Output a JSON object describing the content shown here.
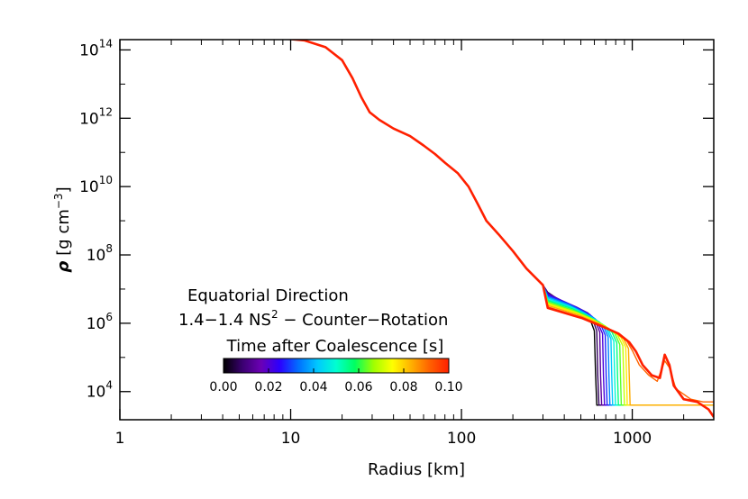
{
  "chart_data": {
    "type": "line",
    "xlabel": "Radius [km]",
    "ylabel_symbol": "ρ",
    "ylabel_units": "[g cm",
    "ylabel_exp": "−3",
    "ylabel_close": "]",
    "xscale": "log",
    "yscale": "log",
    "xlim": [
      1,
      3000
    ],
    "ylim": [
      1500,
      200000000000000.0
    ],
    "x_ticks": [
      {
        "value": 1,
        "label": "1"
      },
      {
        "value": 10,
        "label": "10"
      },
      {
        "value": 100,
        "label": "100"
      },
      {
        "value": 1000,
        "label": "1000"
      }
    ],
    "y_ticks": [
      {
        "value": 10000.0,
        "base": "10",
        "exp": "4"
      },
      {
        "value": 1000000.0,
        "base": "10",
        "exp": "6"
      },
      {
        "value": 100000000.0,
        "base": "10",
        "exp": "8"
      },
      {
        "value": 10000000000.0,
        "base": "10",
        "exp": "10"
      },
      {
        "value": 1000000000000.0,
        "base": "10",
        "exp": "12"
      },
      {
        "value": 100000000000000.0,
        "base": "10",
        "exp": "14"
      }
    ],
    "annotation": {
      "line1": "Equatorial Direction",
      "line2_main": "1.4−1.4 NS",
      "line2_sup": "2",
      "line2_rest": " − Counter−Rotation"
    },
    "colorbar": {
      "title": "Time after Coalescence [s]",
      "range": [
        0.0,
        0.1
      ],
      "colors": [
        "#000000",
        "#3a0070",
        "#6b00b5",
        "#2b00ff",
        "#0070ff",
        "#00c8ff",
        "#00ffd0",
        "#00ff60",
        "#a0ff00",
        "#ffff00",
        "#ffb000",
        "#ff6000",
        "#ff2000"
      ],
      "ticks": [
        "0.00",
        "0.02",
        "0.04",
        "0.06",
        "0.08",
        "0.10"
      ]
    },
    "series_common": [
      [
        1,
        240000000000000.0
      ],
      [
        4,
        240000000000000.0
      ],
      [
        8,
        230000000000000.0
      ],
      [
        12,
        190000000000000.0
      ],
      [
        16,
        120000000000000.0
      ],
      [
        20,
        50000000000000.0
      ],
      [
        23,
        15000000000000.0
      ],
      [
        26,
        4000000000000.0
      ],
      [
        29,
        1500000000000.0
      ],
      [
        33,
        900000000000.0
      ],
      [
        40,
        500000000000.0
      ],
      [
        50,
        300000000000.0
      ],
      [
        60,
        160000000000.0
      ],
      [
        70,
        90000000000.0
      ],
      [
        80,
        50000000000.0
      ],
      [
        95,
        25000000000.0
      ],
      [
        110,
        10000000000.0
      ],
      [
        125,
        3000000000.0
      ],
      [
        140,
        1000000000.0
      ],
      [
        165,
        400000000.0
      ],
      [
        200,
        130000000.0
      ],
      [
        240,
        40000000.0
      ],
      [
        300,
        13000000.0
      ]
    ],
    "series": [
      {
        "time": 0.0,
        "values": [
          [
            320,
            8000000.0
          ],
          [
            380,
            4500000.0
          ],
          [
            450,
            3000000.0
          ],
          [
            520,
            2000000.0
          ],
          [
            570,
            1200000.0
          ],
          [
            600,
            600000.0
          ],
          [
            610,
            30000.0
          ],
          [
            620,
            4000.0
          ],
          [
            3000,
            4000.0
          ]
        ]
      },
      {
        "time": 0.007,
        "values": [
          [
            320,
            8000000.0
          ],
          [
            380,
            4500000.0
          ],
          [
            460,
            3000000.0
          ],
          [
            530,
            2000000.0
          ],
          [
            590,
            1200000.0
          ],
          [
            620,
            600000.0
          ],
          [
            628,
            30000.0
          ],
          [
            638,
            4000.0
          ],
          [
            3000,
            4000.0
          ]
        ]
      },
      {
        "time": 0.014,
        "values": [
          [
            320,
            7500000.0
          ],
          [
            390,
            4500000.0
          ],
          [
            470,
            3000000.0
          ],
          [
            550,
            2000000.0
          ],
          [
            610,
            1100000.0
          ],
          [
            645,
            550000.0
          ],
          [
            652,
            30000.0
          ],
          [
            662,
            4000.0
          ],
          [
            3000,
            4000.0
          ]
        ]
      },
      {
        "time": 0.021,
        "values": [
          [
            320,
            7000000.0
          ],
          [
            400,
            4300000.0
          ],
          [
            480,
            2800000.0
          ],
          [
            565,
            1800000.0
          ],
          [
            630,
            1000000.0
          ],
          [
            670,
            500000.0
          ],
          [
            678,
            30000.0
          ],
          [
            688,
            4000.0
          ],
          [
            3000,
            4000.0
          ]
        ]
      },
      {
        "time": 0.028,
        "values": [
          [
            320,
            6500000.0
          ],
          [
            410,
            4000000.0
          ],
          [
            490,
            2600000.0
          ],
          [
            580,
            1600000.0
          ],
          [
            655,
            900000.0
          ],
          [
            695,
            450000.0
          ],
          [
            703,
            30000.0
          ],
          [
            713,
            4000.0
          ],
          [
            3000,
            4000.0
          ]
        ]
      },
      {
        "time": 0.035,
        "values": [
          [
            320,
            6000000.0
          ],
          [
            420,
            3600000.0
          ],
          [
            505,
            2300000.0
          ],
          [
            600,
            1400000.0
          ],
          [
            680,
            800000.0
          ],
          [
            722,
            400000.0
          ],
          [
            730,
            30000.0
          ],
          [
            740,
            4000.0
          ],
          [
            3000,
            4000.0
          ]
        ]
      },
      {
        "time": 0.042,
        "values": [
          [
            320,
            5500000.0
          ],
          [
            430,
            3200000.0
          ],
          [
            520,
            2000000.0
          ],
          [
            620,
            1200000.0
          ],
          [
            705,
            700000.0
          ],
          [
            750,
            350000.0
          ],
          [
            758,
            30000.0
          ],
          [
            768,
            4000.0
          ],
          [
            3000,
            4000.0
          ]
        ]
      },
      {
        "time": 0.049,
        "values": [
          [
            320,
            5000000.0
          ],
          [
            440,
            2900000.0
          ],
          [
            535,
            1800000.0
          ],
          [
            640,
            1100000.0
          ],
          [
            730,
            600000.0
          ],
          [
            780,
            300000.0
          ],
          [
            788,
            30000.0
          ],
          [
            798,
            4000.0
          ],
          [
            3000,
            4000.0
          ]
        ]
      },
      {
        "time": 0.056,
        "values": [
          [
            320,
            4600000.0
          ],
          [
            450,
            2600000.0
          ],
          [
            550,
            1600000.0
          ],
          [
            665,
            950000.0
          ],
          [
            760,
            550000.0
          ],
          [
            812,
            270000.0
          ],
          [
            820,
            30000.0
          ],
          [
            830,
            4000.0
          ],
          [
            3000,
            4000.0
          ]
        ]
      },
      {
        "time": 0.063,
        "values": [
          [
            320,
            4200000.0
          ],
          [
            460,
            2300000.0
          ],
          [
            570,
            1400000.0
          ],
          [
            690,
            850000.0
          ],
          [
            790,
            500000.0
          ],
          [
            845,
            240000.0
          ],
          [
            853,
            30000.0
          ],
          [
            863,
            4000.0
          ],
          [
            3000,
            4000.0
          ]
        ]
      },
      {
        "time": 0.07,
        "values": [
          [
            320,
            3900000.0
          ],
          [
            470,
            2100000.0
          ],
          [
            590,
            1300000.0
          ],
          [
            715,
            750000.0
          ],
          [
            820,
            450000.0
          ],
          [
            880,
            220000.0
          ],
          [
            890,
            30000.0
          ],
          [
            900,
            4000.0
          ],
          [
            3000,
            4000.0
          ]
        ]
      },
      {
        "time": 0.077,
        "values": [
          [
            320,
            3600000.0
          ],
          [
            480,
            1900000.0
          ],
          [
            610,
            1100000.0
          ],
          [
            740,
            650000.0
          ],
          [
            855,
            400000.0
          ],
          [
            915,
            200000.0
          ],
          [
            925,
            30000.0
          ],
          [
            935,
            4000.0
          ],
          [
            3000,
            4000.0
          ]
        ]
      },
      {
        "time": 0.084,
        "values": [
          [
            320,
            3300000.0
          ],
          [
            490,
            1700000.0
          ],
          [
            630,
            1000000.0
          ],
          [
            770,
            600000.0
          ],
          [
            890,
            350000.0
          ],
          [
            950,
            180000.0
          ],
          [
            960,
            30000.0
          ],
          [
            972,
            4000.0
          ],
          [
            3000,
            4000.0
          ]
        ]
      },
      {
        "time": 0.091,
        "values": [
          [
            320,
            3000000.0
          ],
          [
            500,
            1500000.0
          ],
          [
            650,
            900000.0
          ],
          [
            800,
            550000.0
          ],
          [
            930,
            300000.0
          ],
          [
            1000,
            160000.0
          ],
          [
            1100,
            60000.0
          ],
          [
            1250,
            30000.0
          ],
          [
            1400,
            20000.0
          ],
          [
            1550,
            80000.0
          ],
          [
            1650,
            50000.0
          ],
          [
            1800,
            12000.0
          ],
          [
            2200,
            6000.0
          ],
          [
            2600,
            5000.0
          ],
          [
            3000,
            5000.0
          ]
        ]
      },
      {
        "time": 0.1,
        "values": [
          [
            320,
            2800000.0
          ],
          [
            510,
            1400000.0
          ],
          [
            670,
            800000.0
          ],
          [
            830,
            500000.0
          ],
          [
            960,
            280000.0
          ],
          [
            1050,
            150000.0
          ],
          [
            1150,
            60000.0
          ],
          [
            1300,
            30000.0
          ],
          [
            1450,
            25000.0
          ],
          [
            1550,
            120000.0
          ],
          [
            1650,
            60000.0
          ],
          [
            1750,
            15000.0
          ],
          [
            2000,
            6000.0
          ],
          [
            2400,
            5000.0
          ],
          [
            2800,
            3000.0
          ],
          [
            3000,
            1800.0
          ]
        ]
      }
    ]
  }
}
